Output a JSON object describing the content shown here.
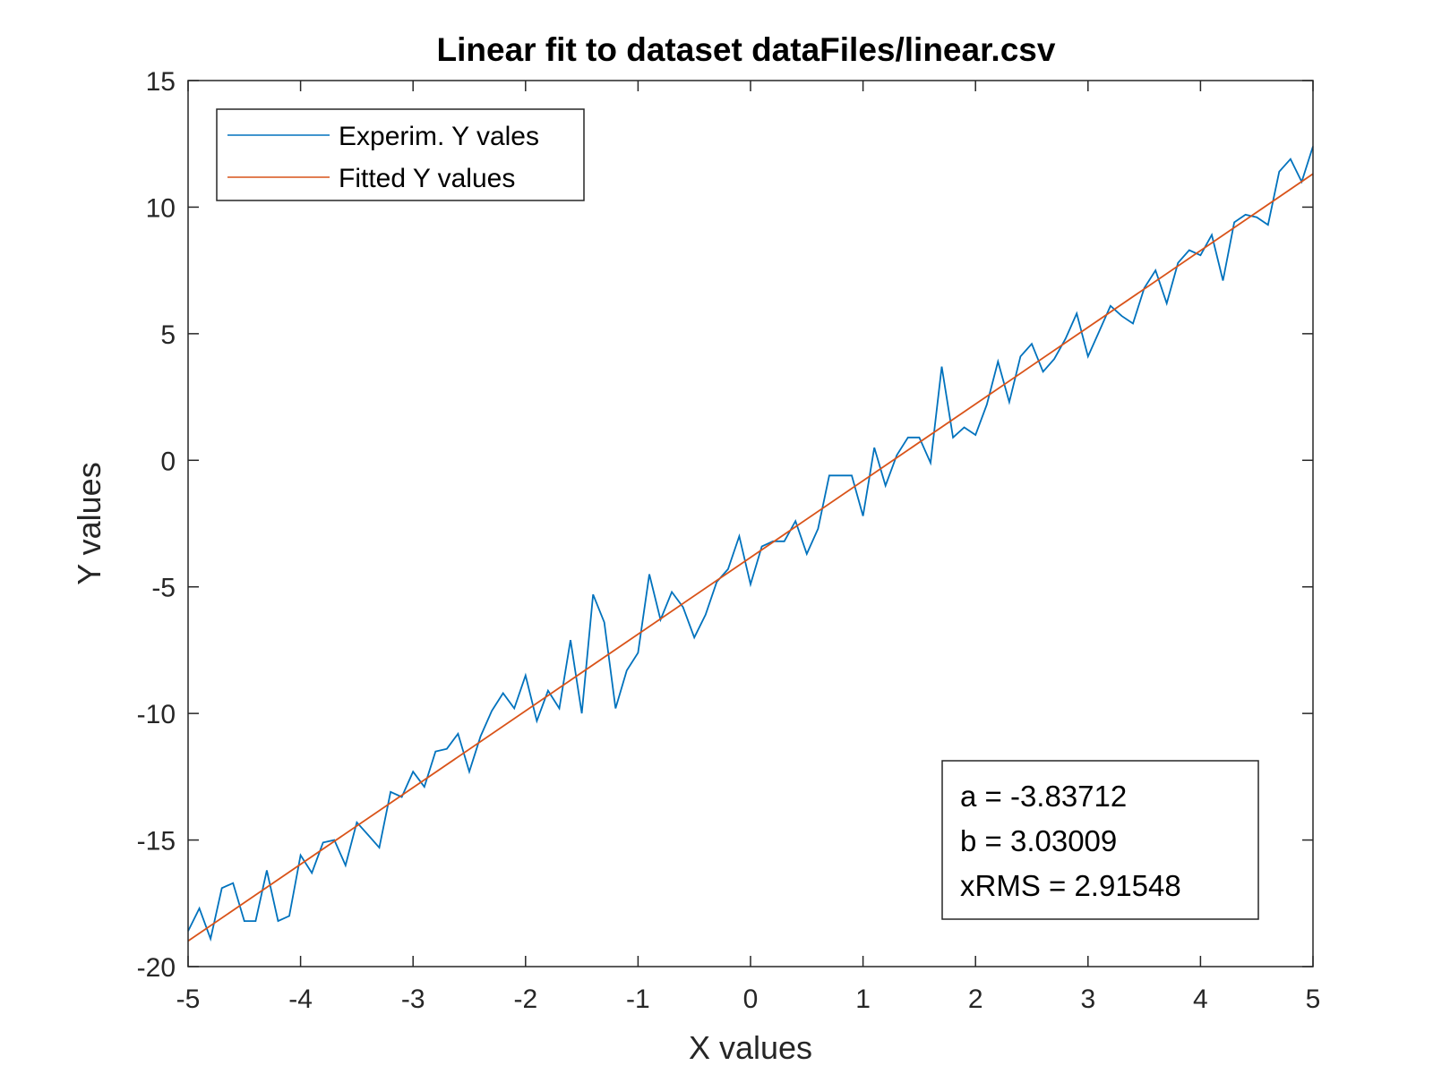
{
  "chart_data": {
    "type": "line",
    "title": "Linear fit to dataset dataFiles/linear.csv",
    "xlabel": "X values",
    "ylabel": "Y values",
    "xlim": [
      -5,
      5
    ],
    "ylim": [
      -20,
      15
    ],
    "xticks": [
      -5,
      -4,
      -3,
      -2,
      -1,
      0,
      1,
      2,
      3,
      4,
      5
    ],
    "yticks": [
      -20,
      -15,
      -10,
      -5,
      0,
      5,
      10,
      15
    ],
    "xtick_labels": [
      "-5",
      "-4",
      "-3",
      "-2",
      "-1",
      "0",
      "1",
      "2",
      "3",
      "4",
      "5"
    ],
    "ytick_labels": [
      "-20",
      "-15",
      "-10",
      "-5",
      "0",
      "5",
      "10",
      "15"
    ],
    "grid": false,
    "legend": {
      "placement": "top-left"
    },
    "series": [
      {
        "name": "Experim. Y vales",
        "color": "#0072BD",
        "x": [
          -5.0,
          -4.9,
          -4.8,
          -4.7,
          -4.6,
          -4.5,
          -4.4,
          -4.3,
          -4.2,
          -4.1,
          -4.0,
          -3.9,
          -3.8,
          -3.7,
          -3.6,
          -3.5,
          -3.4,
          -3.3,
          -3.2,
          -3.1,
          -3.0,
          -2.9,
          -2.8,
          -2.7,
          -2.6,
          -2.5,
          -2.4,
          -2.3,
          -2.2,
          -2.1,
          -2.0,
          -1.9,
          -1.8,
          -1.7,
          -1.6,
          -1.5,
          -1.4,
          -1.3,
          -1.2,
          -1.1,
          -1.0,
          -0.9,
          -0.8,
          -0.7,
          -0.6,
          -0.5,
          -0.4,
          -0.3,
          -0.2,
          -0.1,
          0.0,
          0.1,
          0.2,
          0.3,
          0.4,
          0.5,
          0.6,
          0.7,
          0.8,
          0.9,
          1.0,
          1.1,
          1.2,
          1.3,
          1.4,
          1.5,
          1.6,
          1.7,
          1.8,
          1.9,
          2.0,
          2.1,
          2.2,
          2.3,
          2.4,
          2.5,
          2.6,
          2.7,
          2.8,
          2.9,
          3.0,
          3.1,
          3.2,
          3.3,
          3.4,
          3.5,
          3.6,
          3.7,
          3.8,
          3.9,
          4.0,
          4.1,
          4.2,
          4.3,
          4.4,
          4.5,
          4.6,
          4.7,
          4.8,
          4.9,
          5.0
        ],
        "y": [
          -18.6,
          -17.7,
          -18.9,
          -16.9,
          -16.7,
          -18.2,
          -18.2,
          -16.2,
          -18.2,
          -18.0,
          -15.6,
          -16.3,
          -15.1,
          -15.0,
          -16.0,
          -14.3,
          -14.8,
          -15.3,
          -13.1,
          -13.3,
          -12.3,
          -12.9,
          -11.5,
          -11.4,
          -10.8,
          -12.3,
          -10.9,
          -9.9,
          -9.2,
          -9.8,
          -8.5,
          -10.3,
          -9.1,
          -9.8,
          -7.1,
          -10.0,
          -5.3,
          -6.4,
          -9.8,
          -8.3,
          -7.6,
          -4.5,
          -6.3,
          -5.2,
          -5.8,
          -7.0,
          -6.1,
          -4.8,
          -4.3,
          -3.0,
          -4.9,
          -3.4,
          -3.2,
          -3.2,
          -2.4,
          -3.7,
          -2.7,
          -0.6,
          -0.6,
          -0.6,
          -2.2,
          0.5,
          -1.0,
          0.2,
          0.9,
          0.9,
          -0.1,
          3.7,
          0.9,
          1.3,
          1.0,
          2.2,
          3.9,
          2.3,
          4.1,
          4.6,
          3.5,
          4.0,
          4.8,
          5.8,
          4.1,
          5.1,
          6.1,
          5.7,
          5.4,
          6.8,
          7.5,
          6.2,
          7.8,
          8.3,
          8.1,
          8.9,
          7.1,
          9.4,
          9.7,
          9.6,
          9.3,
          11.4,
          11.9,
          11.0,
          12.4
        ]
      },
      {
        "name": "Fitted Y values",
        "color": "#D95319",
        "x": [
          -5,
          5
        ],
        "y": [
          -18.98757,
          11.31333
        ]
      }
    ],
    "annotation_lines": [
      "a = -3.83712",
      "b = 3.03009",
      "xRMS = 2.91548"
    ]
  }
}
